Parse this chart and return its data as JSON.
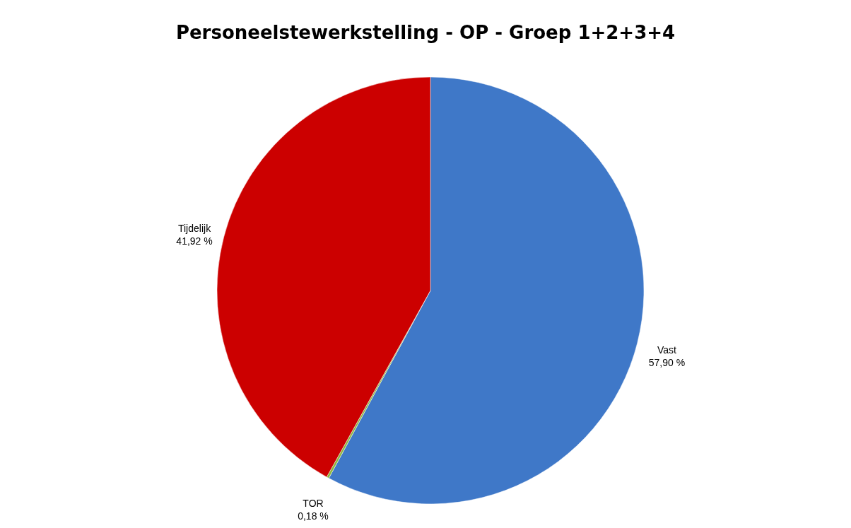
{
  "chart_data": {
    "type": "pie",
    "title": "Personeelstewerkstelling  -  OP  -  Groep 1+2+3+4",
    "categories": [
      "Vast",
      "TOR",
      "Tijdelijk"
    ],
    "values": [
      57.9,
      0.18,
      41.92
    ],
    "value_labels": [
      "57,90 %",
      "0,18 %",
      "41,92 %"
    ],
    "colors": [
      "#3f78c8",
      "#8cb63c",
      "#cc0000"
    ],
    "legend": false
  }
}
